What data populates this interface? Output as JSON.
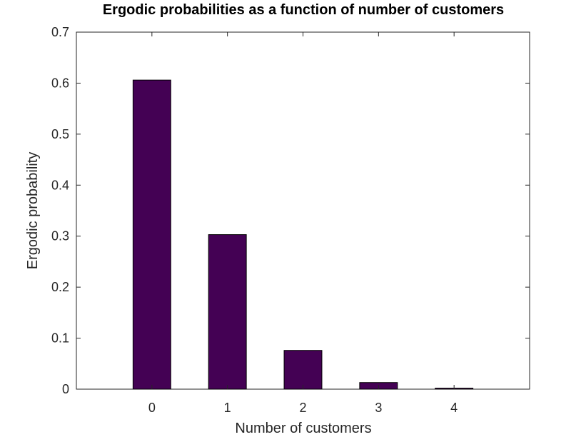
{
  "chart_data": {
    "type": "bar",
    "title": "Ergodic probabilities as a function of number of customers",
    "xlabel": "Number of customers",
    "ylabel": "Ergodic probability",
    "categories": [
      "0",
      "1",
      "2",
      "3",
      "4"
    ],
    "x": [
      0,
      1,
      2,
      3,
      4
    ],
    "values": [
      0.606,
      0.303,
      0.076,
      0.013,
      0.002
    ],
    "xlim": [
      -1,
      5
    ],
    "ylim": [
      0,
      0.7
    ],
    "yticks": [
      0,
      0.1,
      0.2,
      0.3,
      0.4,
      0.5,
      0.6,
      0.7
    ],
    "ytick_labels": [
      "0",
      "0.1",
      "0.2",
      "0.3",
      "0.4",
      "0.5",
      "0.6",
      "0.7"
    ],
    "grid": false,
    "legend": "none",
    "bar_color": "#440154",
    "edge_color": "#000000"
  }
}
